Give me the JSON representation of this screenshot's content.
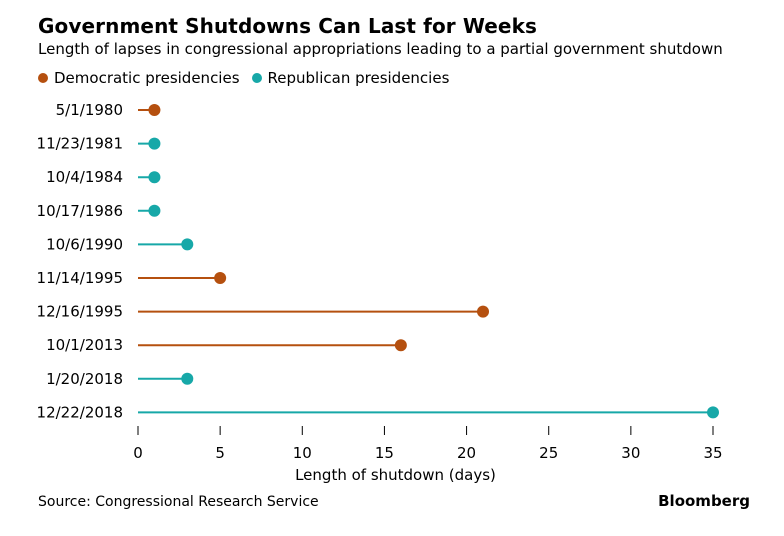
{
  "header": {
    "title": "Government Shutdowns Can Last for Weeks",
    "subtitle": "Length of lapses in congressional appropriations leading to a partial government shutdown"
  },
  "legend": [
    {
      "name": "Democratic presidencies",
      "color": "#b5500f"
    },
    {
      "name": "Republican presidencies",
      "color": "#17a8a8"
    }
  ],
  "footer": {
    "source": "Source: Congressional Research Service",
    "brand": "Bloomberg"
  },
  "chart_data": {
    "type": "dot-plot",
    "title": "Government Shutdowns Can Last for Weeks",
    "subtitle": "Length of lapses in congressional appropriations leading to a partial government shutdown",
    "xlabel": "Length of shutdown (days)",
    "ylabel": "",
    "xlim": [
      0,
      35
    ],
    "xticks": [
      0,
      5,
      10,
      15,
      20,
      25,
      30,
      35
    ],
    "grid": false,
    "legend_position": "top-left",
    "series": [
      {
        "name": "Democratic presidencies",
        "color": "#b5500f"
      },
      {
        "name": "Republican presidencies",
        "color": "#17a8a8"
      }
    ],
    "categories": [
      "5/1/1980",
      "11/23/1981",
      "10/4/1984",
      "10/17/1986",
      "10/6/1990",
      "11/14/1995",
      "12/16/1995",
      "10/1/2013",
      "1/20/2018",
      "12/22/2018"
    ],
    "values": [
      1,
      1,
      1,
      1,
      3,
      5,
      21,
      16,
      3,
      35
    ],
    "party": [
      "Democratic presidencies",
      "Republican presidencies",
      "Republican presidencies",
      "Republican presidencies",
      "Republican presidencies",
      "Democratic presidencies",
      "Democratic presidencies",
      "Democratic presidencies",
      "Republican presidencies",
      "Republican presidencies"
    ]
  }
}
